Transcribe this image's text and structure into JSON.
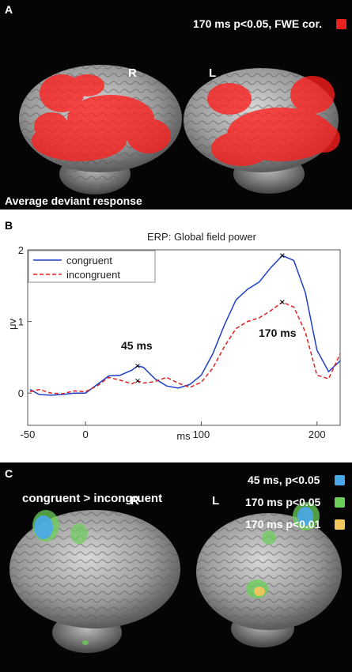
{
  "panel_a": {
    "label": "A",
    "legend_text": "170 ms p<0.05, FWE cor.",
    "legend_color": "#e8231f",
    "hemi_right": "R",
    "hemi_left": "L",
    "caption": "Average deviant response"
  },
  "panel_b": {
    "label": "B",
    "annotation_45": "45 ms",
    "annotation_170": "170 ms"
  },
  "chart_data": {
    "type": "line",
    "title": "ERP: Global field power",
    "xlabel": "ms",
    "ylabel": "μv",
    "xlim": [
      -50,
      220
    ],
    "ylim": [
      -0.45,
      2.0
    ],
    "xticks": [
      -50,
      0,
      100,
      200
    ],
    "yticks": [
      0,
      1,
      2
    ],
    "grid": false,
    "legend_position": "top-left",
    "series": [
      {
        "name": "congruent",
        "color": "#1f3fc8",
        "style": "solid",
        "x": [
          -48,
          -40,
          -30,
          -20,
          -10,
          0,
          10,
          20,
          30,
          40,
          45,
          50,
          60,
          70,
          80,
          90,
          100,
          110,
          120,
          130,
          140,
          150,
          160,
          170,
          180,
          190,
          200,
          210,
          220
        ],
        "y": [
          0.05,
          -0.02,
          -0.03,
          -0.02,
          0.0,
          0.0,
          0.12,
          0.24,
          0.25,
          0.32,
          0.38,
          0.36,
          0.2,
          0.1,
          0.07,
          0.12,
          0.25,
          0.55,
          0.95,
          1.3,
          1.45,
          1.55,
          1.75,
          1.92,
          1.85,
          1.4,
          0.6,
          0.3,
          0.45
        ]
      },
      {
        "name": "incongruent",
        "color": "#e02020",
        "style": "dashed",
        "x": [
          -48,
          -40,
          -30,
          -20,
          -10,
          0,
          10,
          20,
          30,
          40,
          45,
          50,
          60,
          70,
          80,
          90,
          100,
          110,
          120,
          130,
          140,
          150,
          160,
          170,
          180,
          190,
          200,
          210,
          220
        ],
        "y": [
          0.02,
          0.05,
          0.0,
          -0.01,
          0.03,
          0.02,
          0.1,
          0.22,
          0.18,
          0.13,
          0.17,
          0.14,
          0.16,
          0.22,
          0.14,
          0.08,
          0.15,
          0.35,
          0.65,
          0.9,
          1.0,
          1.05,
          1.15,
          1.27,
          1.2,
          0.85,
          0.25,
          0.2,
          0.55
        ]
      }
    ],
    "markers": [
      {
        "series": "congruent",
        "x": 45,
        "y": 0.38
      },
      {
        "series": "incongruent",
        "x": 45,
        "y": 0.17
      },
      {
        "series": "congruent",
        "x": 170,
        "y": 1.92
      },
      {
        "series": "incongruent",
        "x": 170,
        "y": 1.27
      }
    ]
  },
  "panel_c": {
    "label": "C",
    "contrast": "congruent > incongruent",
    "hemi_right": "R",
    "hemi_left": "L",
    "legend": [
      {
        "text": "45 ms, p<0.05",
        "color": "#4aa8ea"
      },
      {
        "text": "170 ms p<0.05",
        "color": "#6ccf5a"
      },
      {
        "text": "170 ms p<0.01",
        "color": "#f2c75c"
      }
    ]
  }
}
